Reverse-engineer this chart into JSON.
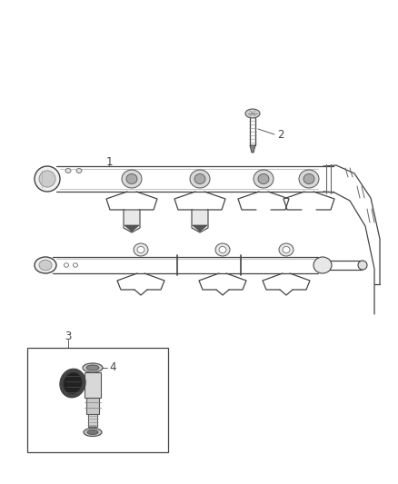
{
  "bg_color": "#ffffff",
  "line_color": "#444444",
  "fig_width": 4.38,
  "fig_height": 5.33,
  "label_fontsize": 8.5
}
